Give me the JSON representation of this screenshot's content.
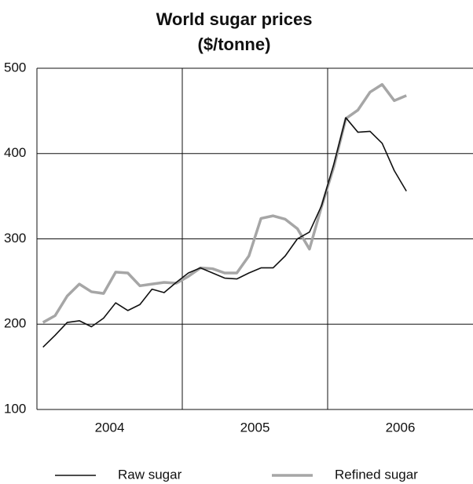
{
  "chart_data": {
    "type": "line",
    "title": "World sugar prices",
    "subtitle": "($/tonne)",
    "categories": [
      null,
      null,
      null,
      null,
      null,
      null,
      "2004",
      null,
      null,
      null,
      null,
      null,
      null,
      null,
      null,
      null,
      null,
      null,
      "2005",
      null,
      null,
      null,
      null,
      null,
      null,
      null,
      null,
      null,
      null,
      null,
      "2006",
      null,
      null,
      null,
      null,
      null
    ],
    "series": [
      {
        "name": "Raw sugar",
        "color": "#111111",
        "values": [
          173,
          187,
          202,
          204,
          197,
          207,
          225,
          216,
          223,
          241,
          237,
          249,
          260,
          266,
          260,
          254,
          253,
          260,
          266,
          266,
          280,
          300,
          308,
          339,
          387,
          442,
          425,
          426,
          412,
          380,
          356,
          null,
          null,
          null,
          null,
          null
        ]
      },
      {
        "name": "Refined sugar",
        "color": "#a6a6a6",
        "values": [
          202,
          210,
          233,
          247,
          238,
          236,
          261,
          260,
          245,
          247,
          249,
          248,
          256,
          266,
          265,
          260,
          260,
          280,
          324,
          327,
          323,
          312,
          288,
          338,
          384,
          441,
          451,
          472,
          481,
          462,
          468,
          null,
          null,
          null,
          null,
          null
        ]
      }
    ],
    "ylim": [
      100,
      500
    ],
    "yticks": [
      100,
      200,
      300,
      400,
      500
    ],
    "grid": true
  }
}
